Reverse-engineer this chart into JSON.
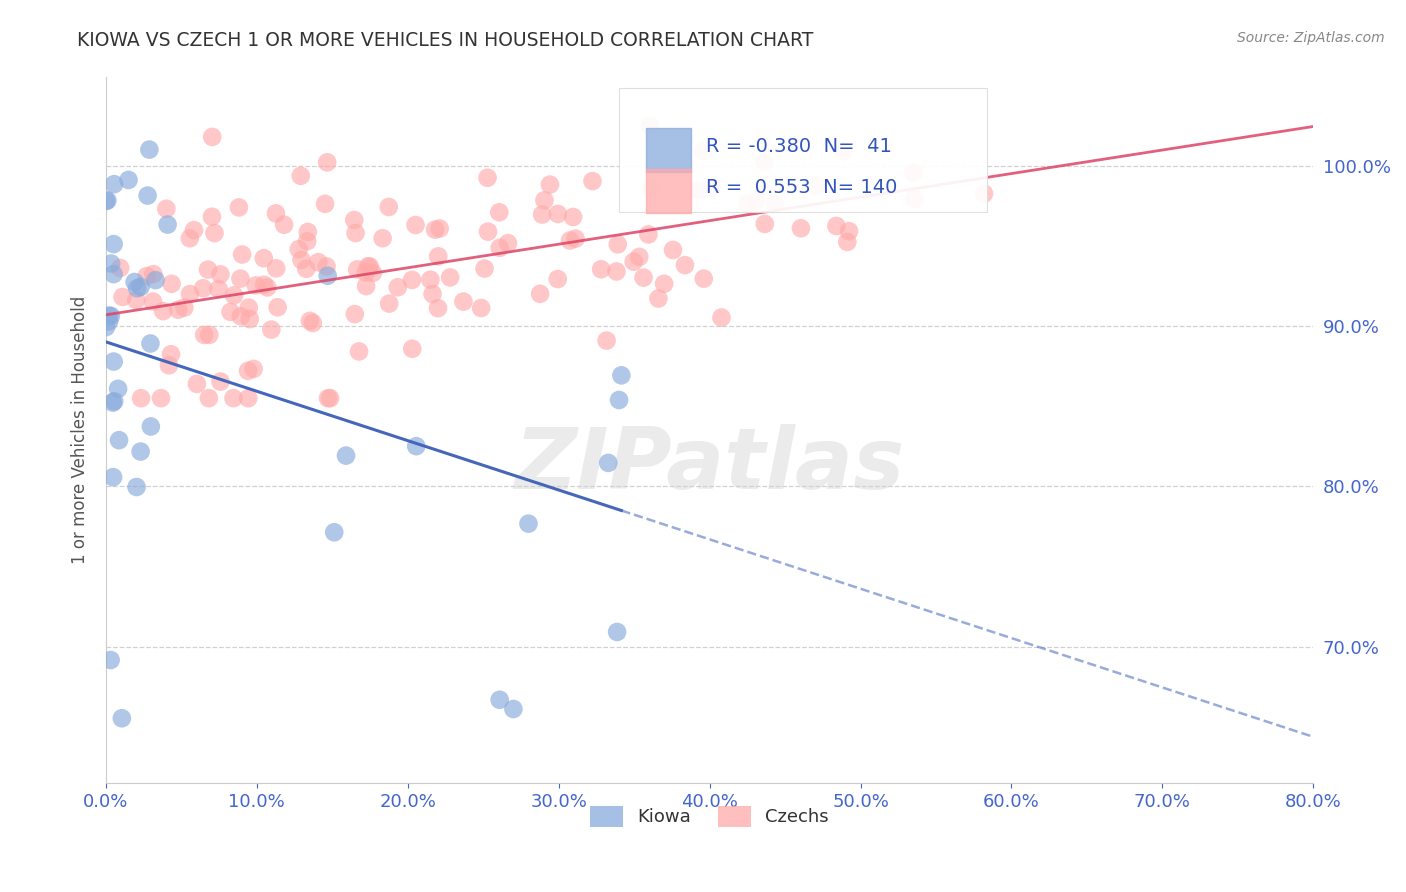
{
  "title": "KIOWA VS CZECH 1 OR MORE VEHICLES IN HOUSEHOLD CORRELATION CHART",
  "source_text": "Source: ZipAtlas.com",
  "ylabel": "1 or more Vehicles in Household",
  "xmin": 0.0,
  "xmax": 0.8,
  "ymin": 0.615,
  "ymax": 1.055,
  "kiowa_color": "#88AADD",
  "czech_color": "#FFAAAA",
  "kiowa_line_color": "#4466BB",
  "czech_line_color": "#DD4466",
  "legend_kiowa_R": "-0.380",
  "legend_kiowa_N": "41",
  "legend_czech_R": "0.553",
  "legend_czech_N": "140",
  "watermark_text": "ZIPatlas",
  "background_color": "#FFFFFF",
  "grid_color": "#CCCCCC",
  "title_color": "#333333",
  "tick_color": "#4466CC",
  "ylabel_color": "#555555",
  "source_color": "#888888",
  "legend_text_color": "#3355BB",
  "kiowa_seed": 42,
  "czech_seed": 99
}
